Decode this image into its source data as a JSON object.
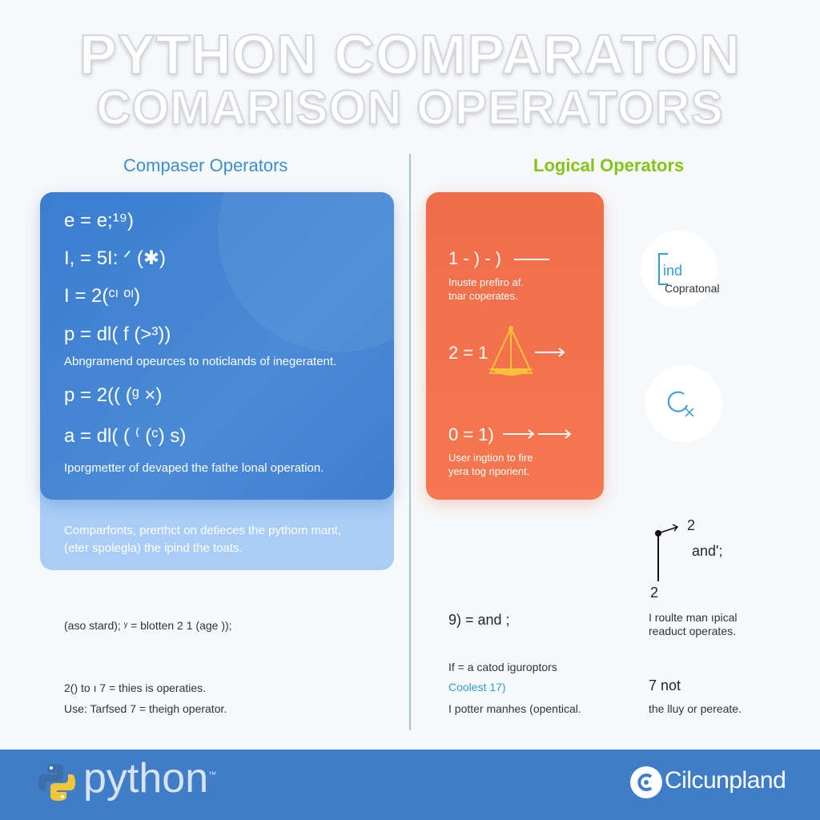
{
  "title": {
    "line1": "PYTHON COMPARATON",
    "line2": "COMARISON OPERATORS"
  },
  "left_section": {
    "heading": "Compaser Operators",
    "formulas": [
      "e = e;¹⁹)",
      "I, = 5I: ᐟ (✱)",
      "I = 2(ᶜᶦ ᵒᶦ)",
      "p = dl( f (>³))",
      "p = 2(( (ᵍ ×)",
      "a = dl( ( ⁽ (ᶜ) s)"
    ],
    "notes": [
      "Abngramend opeurces to noticlands of inegeratent.",
      "Iporgmetter of devaped the fathe lonal operation."
    ],
    "light_notes": [
      "Comparfonts, prerthct on detieces the pythom mant,",
      "(eter spolegla) the ipind the toats."
    ],
    "bottom": [
      "(aso stard);  ʸ = blotten 2  1 (age ));",
      "2()  to ı 7 = thies is operaties.",
      "Use: Tarfsed 7 = theigh operator."
    ]
  },
  "right_section": {
    "heading": "Logical Operators",
    "card": {
      "formula1": "1 - ) - )",
      "note1": [
        "Inuste prefiro af.",
        "tnar coperates."
      ],
      "formula2": "2 = 1",
      "formula3": "0 = 1)",
      "note3": [
        "User ingtion to fire",
        "yera tog nporient."
      ]
    },
    "side": {
      "ind_label": "ind",
      "ind_caption": "Copratonal",
      "node_label": "2",
      "node_text": "and';",
      "node_bottom": "2"
    },
    "bottom": {
      "expr": "9) = and ;",
      "text1": "If = a  catod iguroptors",
      "accent": "Coolest 17)",
      "text2": "I potter manhes (opentical.",
      "right1": [
        "I roulte man ıpical",
        "readuct operates."
      ],
      "right2_title": "7 not",
      "right2_text": "the lluy or pereate."
    }
  },
  "footer": {
    "logo_word": "python",
    "trademark": "™",
    "brand": "Cilcunpland"
  },
  "colors": {
    "blue_card": "#3a7ed0",
    "light_card": "#a9cdf7",
    "orange_card": "#f26d4a",
    "footer": "#3f7dc9",
    "left_heading": "#3b8fd0",
    "right_heading": "#84c318",
    "python_blue": "#3c6ea8",
    "python_yellow": "#f3c63a"
  },
  "icons": [
    "python-logo-icon",
    "brand-logo-icon",
    "scale-icon",
    "ind-icon",
    "refresh-icon",
    "node-icon"
  ]
}
